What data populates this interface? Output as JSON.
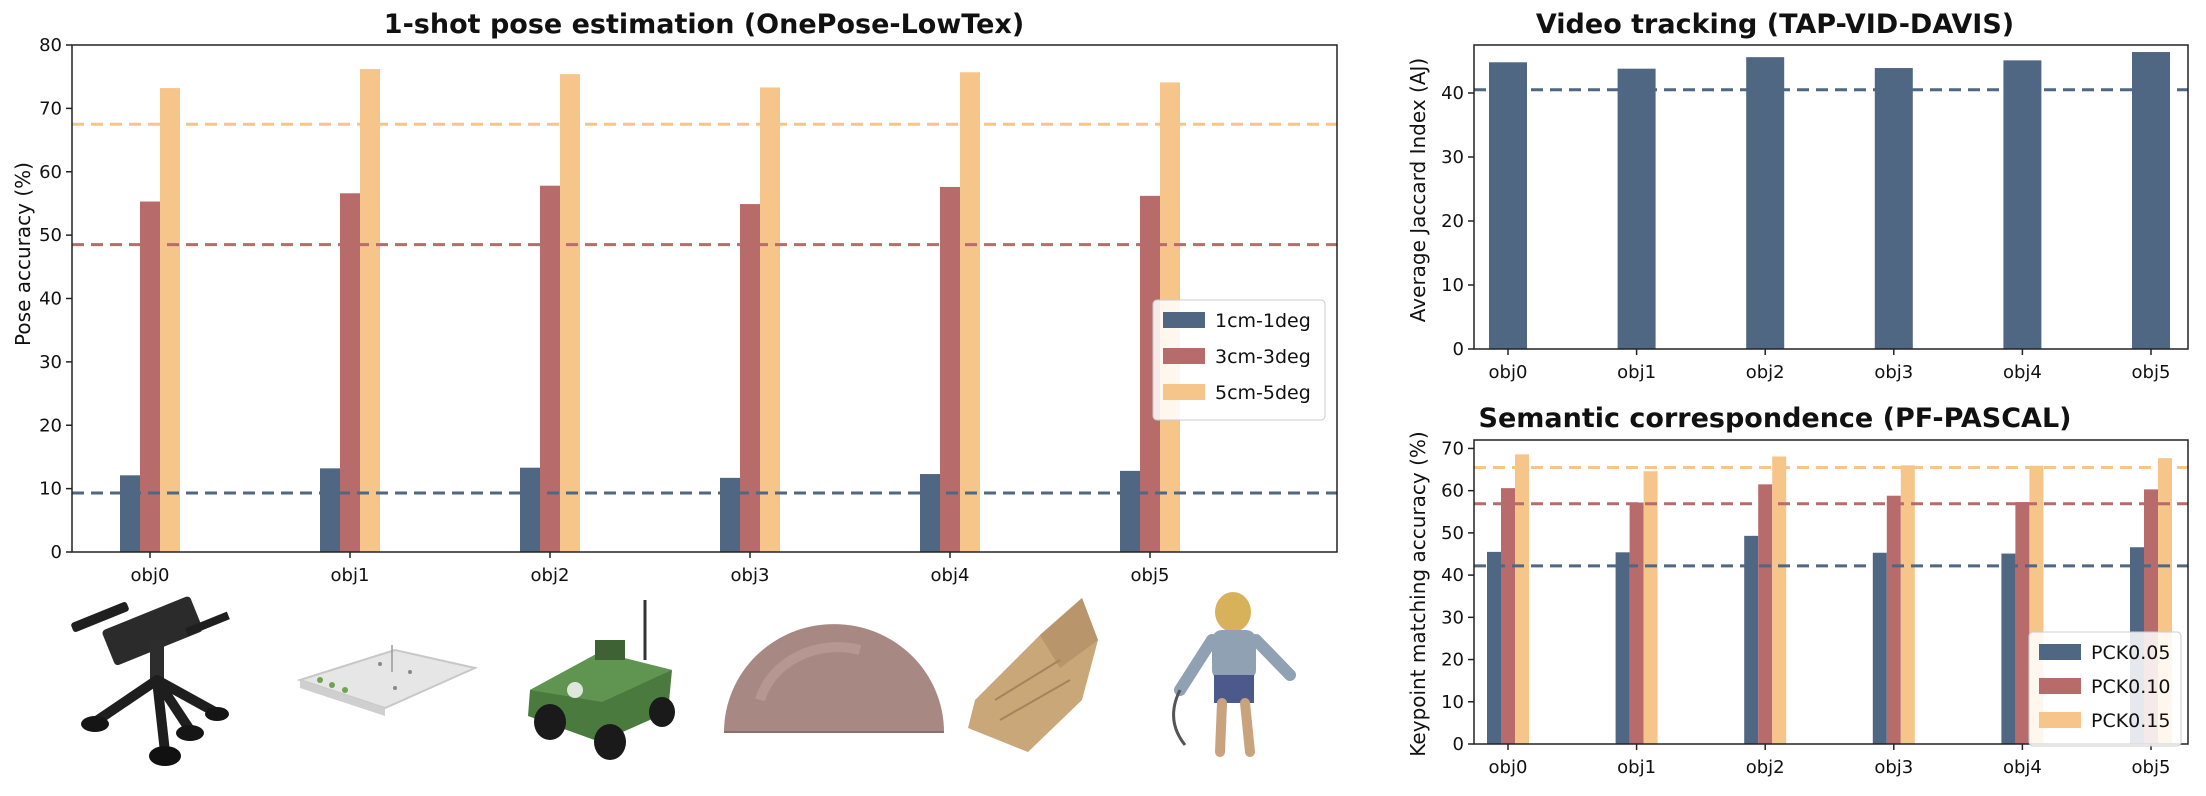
{
  "colors": {
    "dark_blue": "#4f6782",
    "red": "#b86b6b",
    "orange": "#f5c58a",
    "frame": "#222222",
    "background": "#ffffff"
  },
  "chart_data": [
    {
      "id": "pose",
      "type": "bar",
      "title": "1-shot pose estimation (OnePose-LowTex)",
      "xlabel": "",
      "ylabel": "Pose accuracy (%)",
      "categories": [
        "obj0",
        "obj1",
        "obj2",
        "obj3",
        "obj4",
        "obj5"
      ],
      "ylim": [
        0,
        80
      ],
      "yticks": [
        0,
        10,
        20,
        30,
        40,
        50,
        60,
        70,
        80
      ],
      "grid": false,
      "legend": "center-right",
      "series": [
        {
          "name": "1cm-1deg",
          "color": "#4f6782",
          "values": [
            12.1,
            13.2,
            13.3,
            11.7,
            12.3,
            12.8
          ],
          "reference": 9.3
        },
        {
          "name": "3cm-3deg",
          "color": "#b86b6b",
          "values": [
            55.3,
            56.6,
            57.8,
            54.9,
            57.6,
            56.2
          ],
          "reference": 48.5
        },
        {
          "name": "5cm-5deg",
          "color": "#f5c58a",
          "values": [
            73.2,
            76.2,
            75.4,
            73.3,
            75.7,
            74.1
          ],
          "reference": 67.5
        }
      ],
      "object_images": [
        {
          "category": "obj0",
          "depicts": "mounted machine gun on tripod"
        },
        {
          "category": "obj1",
          "depicts": "flat board with small parts"
        },
        {
          "category": "obj2",
          "depicts": "toy military jeep"
        },
        {
          "category": "obj3",
          "depicts": "textured dome"
        },
        {
          "category": "obj4",
          "depicts": "stone fragment"
        },
        {
          "category": "obj5",
          "depicts": "warrior figurine"
        }
      ]
    },
    {
      "id": "tracking",
      "type": "bar",
      "title": "Video tracking (TAP-VID-DAVIS)",
      "xlabel": "",
      "ylabel": "Average Jaccard Index (AJ)",
      "categories": [
        "obj0",
        "obj1",
        "obj2",
        "obj3",
        "obj4",
        "obj5"
      ],
      "ylim": [
        0,
        47.5
      ],
      "yticks": [
        0,
        10,
        20,
        30,
        40
      ],
      "grid": false,
      "legend": "none",
      "series": [
        {
          "name": "",
          "color": "#4f6782",
          "values": [
            44.8,
            43.8,
            45.6,
            43.9,
            45.1,
            46.4
          ],
          "reference": 40.5
        }
      ]
    },
    {
      "id": "semantic",
      "type": "bar",
      "title": "Semantic correspondence (PF-PASCAL)",
      "xlabel": "",
      "ylabel": "Keypoint matching accuracy (%)",
      "categories": [
        "obj0",
        "obj1",
        "obj2",
        "obj3",
        "obj4",
        "obj5"
      ],
      "ylim": [
        0,
        72
      ],
      "yticks": [
        0,
        10,
        20,
        30,
        40,
        50,
        60,
        70
      ],
      "grid": false,
      "legend": "lower-right",
      "series": [
        {
          "name": "PCK0.05",
          "color": "#4f6782",
          "values": [
            45.5,
            45.4,
            49.3,
            45.3,
            45.1,
            46.6
          ],
          "reference": 42.2
        },
        {
          "name": "PCK0.10",
          "color": "#b86b6b",
          "values": [
            60.6,
            57.2,
            61.5,
            58.8,
            57.3,
            60.3
          ],
          "reference": 56.9
        },
        {
          "name": "PCK0.15",
          "color": "#f5c58a",
          "values": [
            68.6,
            64.6,
            68.1,
            66.0,
            65.9,
            67.7
          ],
          "reference": 65.5
        }
      ]
    }
  ]
}
